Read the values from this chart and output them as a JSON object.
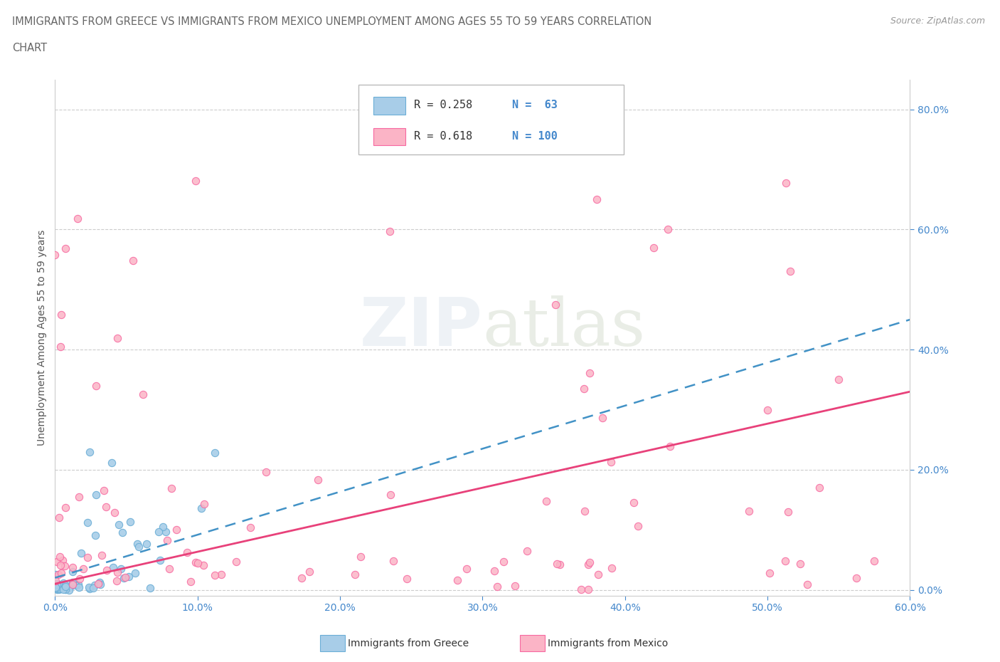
{
  "title_line1": "IMMIGRANTS FROM GREECE VS IMMIGRANTS FROM MEXICO UNEMPLOYMENT AMONG AGES 55 TO 59 YEARS CORRELATION",
  "title_line2": "CHART",
  "source_text": "Source: ZipAtlas.com",
  "ylabel_text": "Unemployment Among Ages 55 to 59 years",
  "xlim": [
    0.0,
    0.6
  ],
  "ylim": [
    -0.01,
    0.85
  ],
  "xtick_labels": [
    "0.0%",
    "10.0%",
    "20.0%",
    "30.0%",
    "40.0%",
    "50.0%",
    "60.0%"
  ],
  "xtick_values": [
    0.0,
    0.1,
    0.2,
    0.3,
    0.4,
    0.5,
    0.6
  ],
  "ytick_labels": [
    "0.0%",
    "20.0%",
    "40.0%",
    "60.0%",
    "80.0%"
  ],
  "ytick_values": [
    0.0,
    0.2,
    0.4,
    0.6,
    0.8
  ],
  "greece_color": "#a8cde8",
  "greece_edge_color": "#6baed6",
  "mexico_color": "#fbb4c6",
  "mexico_edge_color": "#f768a1",
  "greece_line_color": "#4292c6",
  "mexico_line_color": "#e8417a",
  "greece_R": 0.258,
  "greece_N": 63,
  "mexico_R": 0.618,
  "mexico_N": 100,
  "watermark_zip": "ZIP",
  "watermark_atlas": "atlas",
  "legend_label_greece": "Immigrants from Greece",
  "legend_label_mexico": "Immigrants from Mexico",
  "background_color": "#ffffff",
  "grid_color": "#cccccc",
  "title_color": "#666666",
  "axis_label_color": "#555555",
  "tick_color": "#4488cc",
  "legend_r_color": "#333333",
  "legend_n_color": "#4488cc"
}
